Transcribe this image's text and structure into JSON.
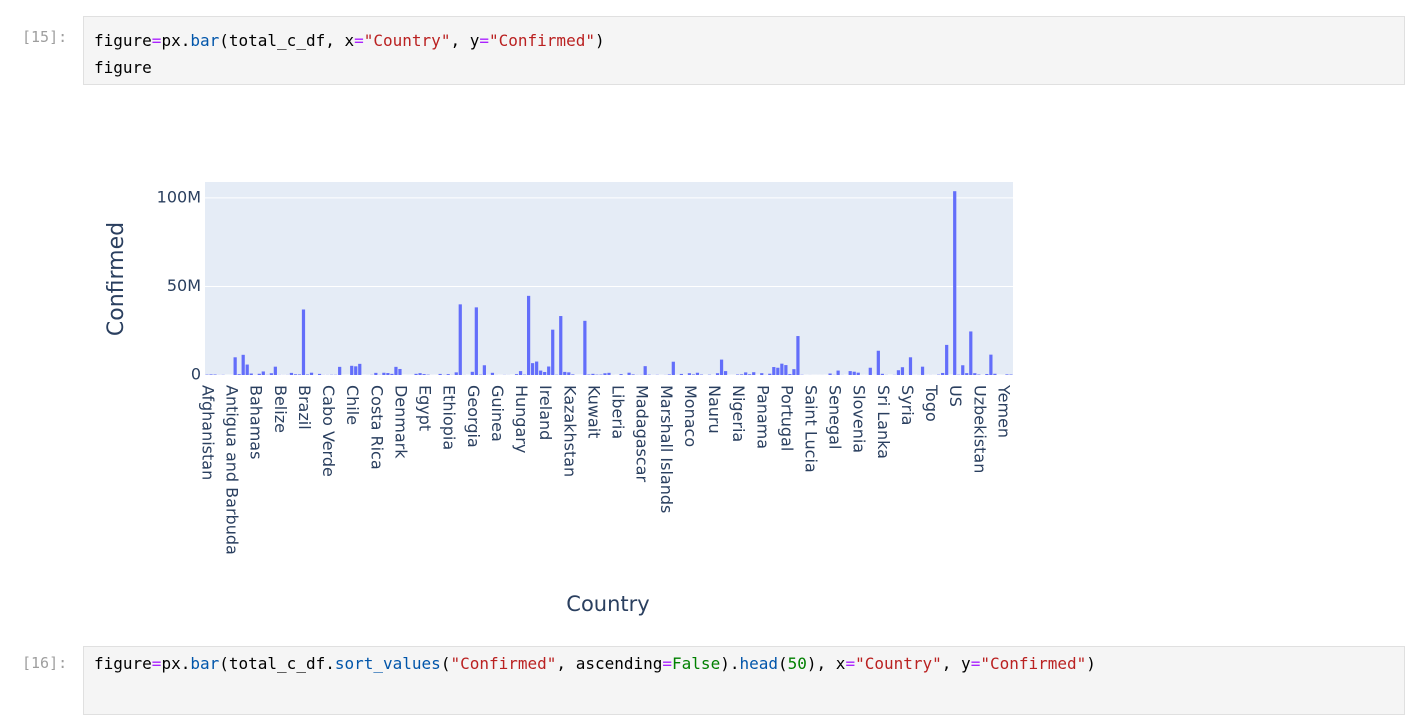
{
  "cells": [
    {
      "prompt": "[15]:",
      "code": [
        [
          "figure",
          "=",
          "px.",
          "bar",
          "(total_c_df, x",
          "=",
          "\"Country\"",
          ", y",
          "=",
          "\"Confirmed\"",
          ")"
        ],
        [
          "figure"
        ]
      ]
    },
    {
      "prompt": "[16]:",
      "code": [
        [
          "figure",
          "=",
          "px.",
          "bar",
          "(total_c_df.",
          "sort_values",
          "(",
          "\"Confirmed\"",
          ", ascending",
          "=",
          "False",
          ").",
          "head",
          "(",
          "50",
          "), x",
          "=",
          "\"Country\"",
          ", y",
          "=",
          "\"Confirmed\"",
          ")"
        ]
      ]
    }
  ],
  "chart_data": {
    "type": "bar",
    "x_label": "Country",
    "y_label": "Confirmed",
    "color": "#636efa",
    "grid": true,
    "ylim": [
      0,
      109000000
    ],
    "yticks": [
      0,
      {
        "value": 50000000,
        "label": "50M"
      },
      {
        "value": 100000000,
        "label": "100M"
      }
    ],
    "categories": [
      "Afghanistan",
      null,
      null,
      null,
      null,
      null,
      "Antigua and Barbuda",
      null,
      null,
      null,
      null,
      null,
      "Bahamas",
      null,
      null,
      null,
      null,
      null,
      "Belize",
      null,
      null,
      null,
      null,
      null,
      "Brazil",
      null,
      null,
      null,
      null,
      null,
      "Cabo Verde",
      null,
      null,
      null,
      null,
      null,
      "Chile",
      null,
      null,
      null,
      null,
      null,
      "Costa Rica",
      null,
      null,
      null,
      null,
      null,
      "Denmark",
      null,
      null,
      null,
      null,
      null,
      "Egypt",
      null,
      null,
      null,
      null,
      null,
      "Ethiopia",
      null,
      null,
      null,
      null,
      null,
      "Georgia",
      null,
      null,
      null,
      null,
      null,
      "Guinea",
      null,
      null,
      null,
      null,
      null,
      "Hungary",
      null,
      null,
      null,
      null,
      null,
      "Ireland",
      null,
      null,
      null,
      null,
      null,
      "Kazakhstan",
      null,
      null,
      null,
      null,
      null,
      "Kuwait",
      null,
      null,
      null,
      null,
      null,
      "Liberia",
      null,
      null,
      null,
      null,
      null,
      "Madagascar",
      null,
      null,
      null,
      null,
      null,
      "Marshall Islands",
      null,
      null,
      null,
      null,
      null,
      "Monaco",
      null,
      null,
      null,
      null,
      null,
      "Nauru",
      null,
      null,
      null,
      null,
      null,
      "Nigeria",
      null,
      null,
      null,
      null,
      null,
      "Panama",
      null,
      null,
      null,
      null,
      null,
      "Portugal",
      null,
      null,
      null,
      null,
      null,
      "Saint Lucia",
      null,
      null,
      null,
      null,
      null,
      "Senegal",
      null,
      null,
      null,
      null,
      null,
      "Slovenia",
      null,
      null,
      null,
      null,
      null,
      "Sri Lanka",
      null,
      null,
      null,
      null,
      null,
      "Syria",
      null,
      null,
      null,
      null,
      null,
      "Togo",
      null,
      null,
      null,
      null,
      null,
      "US",
      null,
      null,
      null,
      null,
      null,
      "Uzbekistan",
      null,
      null,
      null,
      null,
      null,
      "Yemen",
      null,
      null
    ],
    "values": [
      209000,
      330000,
      270000,
      48000,
      105000,
      11,
      9000,
      10000000,
      450000,
      11400000,
      5900000,
      830000,
      38000,
      700000,
      2000000,
      106000,
      994000,
      4700000,
      70000,
      28000,
      62000,
      1190000,
      400000,
      330000,
      37000000,
      272000,
      1300000,
      22000,
      630000,
      52000,
      63000,
      138000,
      124000,
      4600000,
      15000,
      7600,
      5200000,
      4900000,
      6300000,
      9100,
      25000,
      96000,
      1200000,
      88000,
      1270000,
      1110000,
      650000,
      4600000,
      3400000,
      712,
      15000,
      12000,
      660000,
      1060000,
      516000,
      201000,
      17000,
      10000,
      610000,
      74000,
      500000,
      69000,
      1500000,
      39900000,
      49000,
      12600,
      1800000,
      38200000,
      171000,
      5500000,
      19700,
      1240000,
      38000,
      9600,
      73000,
      34000,
      29,
      472000,
      2200000,
      209000,
      44700000,
      6700000,
      7600000,
      2500000,
      1700000,
      4800000,
      25600000,
      154000,
      33300000,
      1750000,
      1500000,
      343000,
      5000,
      1,
      30600000,
      273000,
      663000,
      206000,
      218000,
      980000,
      1230000,
      34000,
      8000,
      507000,
      21000,
      1300000,
      320000,
      68000,
      88000,
      5000000,
      186000,
      33000,
      118000,
      16000,
      63000,
      300000,
      7500000,
      26000,
      610000,
      17000,
      1010000,
      290000,
      1270000,
      233000,
      9,
      171000,
      5200,
      1000000,
      8700000,
      2200000,
      16000,
      9900,
      267000,
      347000,
      1480000,
      400000,
      1580000,
      6000,
      1030000,
      46000,
      735000,
      4500000,
      4100000,
      6400000,
      5600000,
      500000,
      3300000,
      22000000,
      133000,
      6600,
      30000,
      9600,
      16000,
      24000,
      6500,
      841000,
      89000,
      2500000,
      50000,
      7800,
      2200000,
      1860000,
      1330000,
      25000,
      27000,
      4100000,
      18000,
      13700000,
      672000,
      64000,
      865,
      82000,
      2700000,
      4400000,
      57000,
      10000000,
      18000,
      43000,
      4700000,
      23000,
      39000,
      17000,
      191000,
      1150000,
      17000000,
      2900,
      103800000,
      170000,
      5500000,
      1050000,
      24600000,
      1030000,
      251000,
      12000,
      552000,
      11500000,
      703000,
      535,
      12000,
      343000,
      264000
    ]
  }
}
